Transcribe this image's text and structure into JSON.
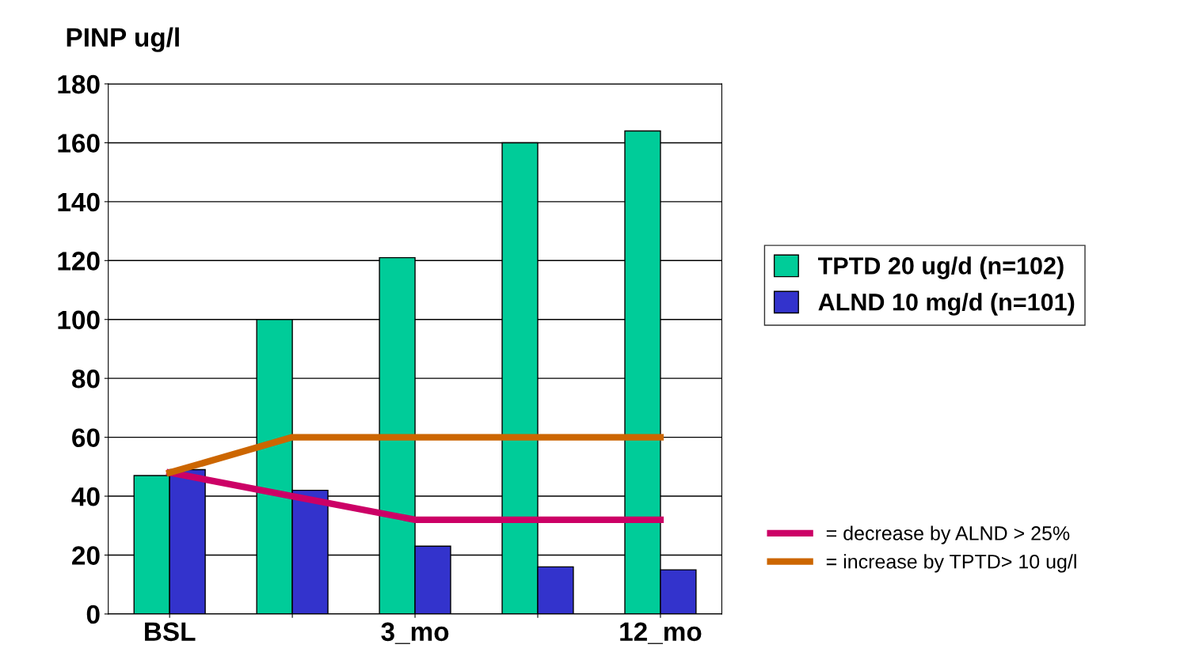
{
  "chart_data": {
    "type": "bar",
    "title": "PINP ug/l",
    "categories": [
      "BSL",
      null,
      "3_mo",
      null,
      "12_mo"
    ],
    "series": [
      {
        "name": "TPTD 20 ug/d (n=102)",
        "color": "#00cc99",
        "values": [
          47,
          100,
          121,
          160,
          164
        ]
      },
      {
        "name": "ALND 10 mg/d (n=101)",
        "color": "#3333cc",
        "values": [
          49,
          42,
          23,
          16,
          15
        ]
      },
      {
        "name": "= decrease by ALND > 25%",
        "type": "line",
        "color": "#cc0066",
        "values": [
          48,
          40,
          32,
          32,
          32
        ]
      },
      {
        "name": "= increase by TPTD> 10 ug/l",
        "type": "line",
        "color": "#cc6600",
        "values": [
          48,
          60,
          60,
          60,
          60
        ]
      }
    ],
    "ylim": [
      0,
      180
    ],
    "yticks": [
      0,
      20,
      40,
      60,
      80,
      100,
      120,
      140,
      160,
      180
    ],
    "grid": "y",
    "legend": "right",
    "marker": "none",
    "line_style": "solid"
  }
}
